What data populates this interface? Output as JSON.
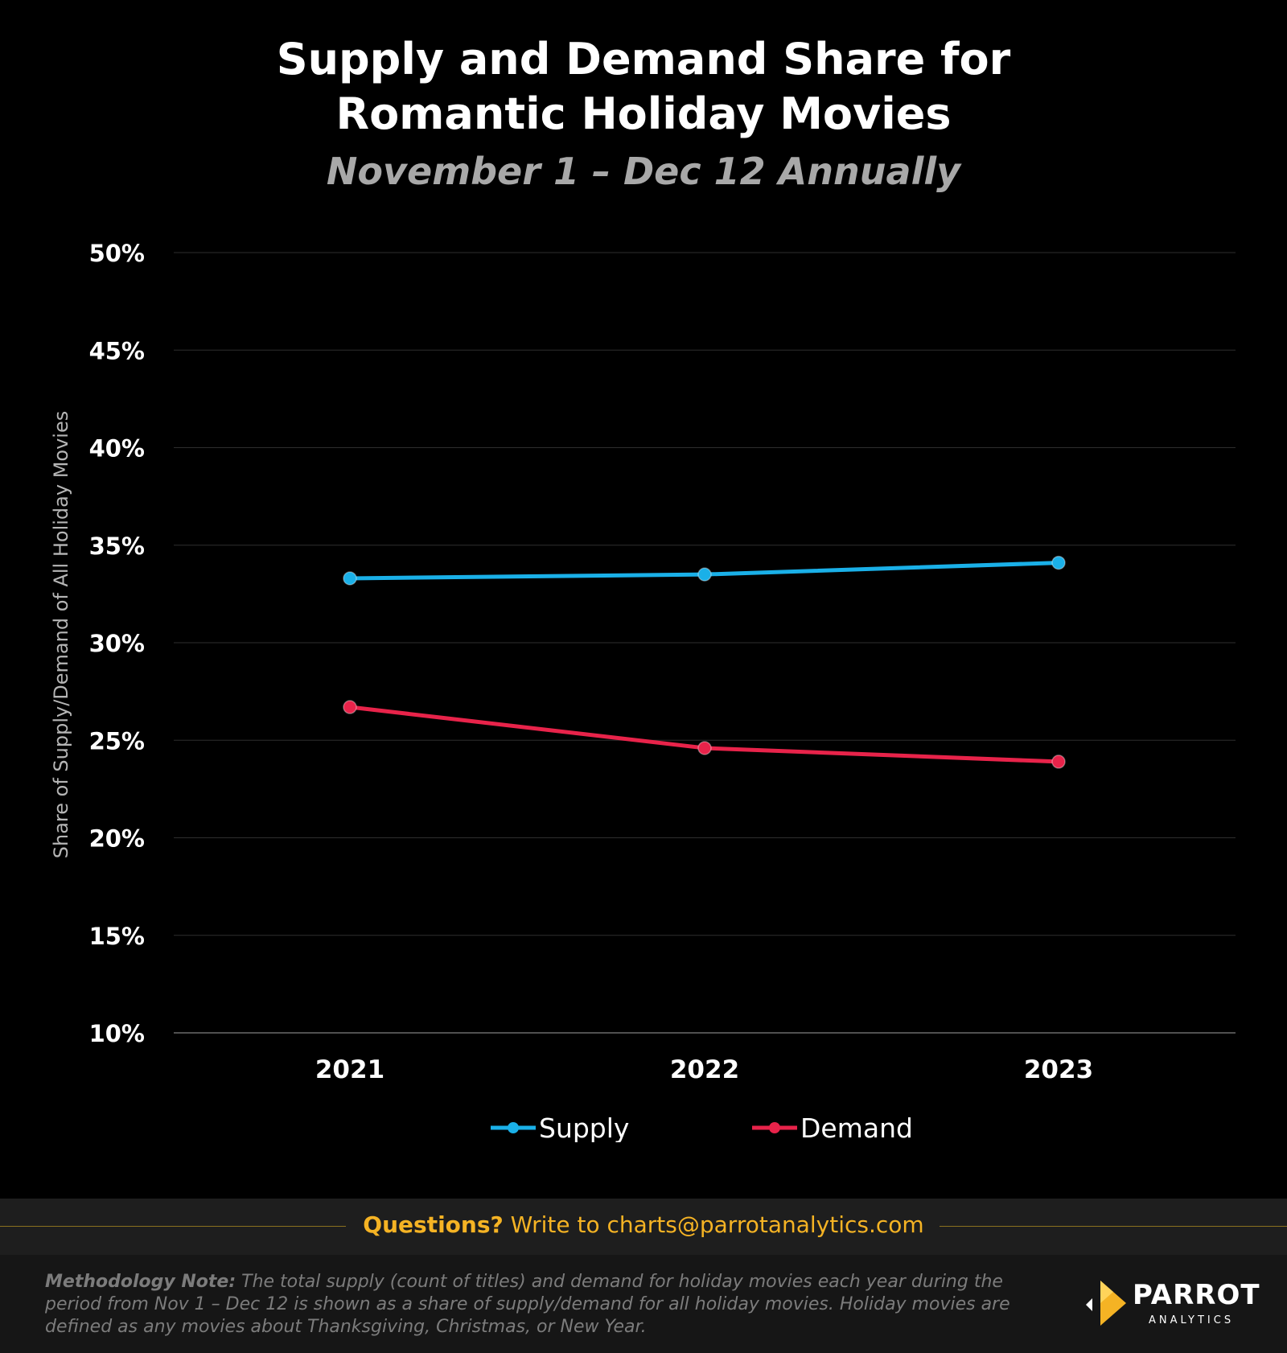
{
  "header": {
    "title_line1": "Supply and Demand Share for",
    "title_line2": "Romantic Holiday Movies",
    "subtitle": "November  1 – Dec 12 Annually"
  },
  "chart_data": {
    "type": "line",
    "title": "Supply and Demand Share for Romantic Holiday Movies",
    "subtitle": "November  1 – Dec 12 Annually",
    "xlabel": "",
    "ylabel": "Share of Supply/Demand of All Holiday Movies",
    "categories": [
      "2021",
      "2022",
      "2023"
    ],
    "yticks": [
      "10%",
      "15%",
      "20%",
      "25%",
      "30%",
      "35%",
      "40%",
      "45%",
      "50%"
    ],
    "ylim": [
      10,
      50
    ],
    "grid": true,
    "legend_position": "bottom",
    "series": [
      {
        "name": "Supply",
        "color": "#1ab0e8",
        "values": [
          33.3,
          33.5,
          34.1
        ]
      },
      {
        "name": "Demand",
        "color": "#e8234a",
        "values": [
          26.7,
          24.6,
          23.9
        ]
      }
    ]
  },
  "footer": {
    "questions_label": "Questions?",
    "questions_text": "Write to charts@parrotanalytics.com",
    "method_label": "Methodology Note:",
    "method_text": "The total supply (count of titles) and demand for holiday movies each year during the period from Nov 1 – Dec 12 is shown as a share of supply/demand for all holiday movies.  Holiday movies are defined as any movies about Thanksgiving, Christmas, or New Year.",
    "logo_name": "PARROT",
    "logo_sub": "ANALYTICS",
    "accent_color": "#f5b324"
  }
}
